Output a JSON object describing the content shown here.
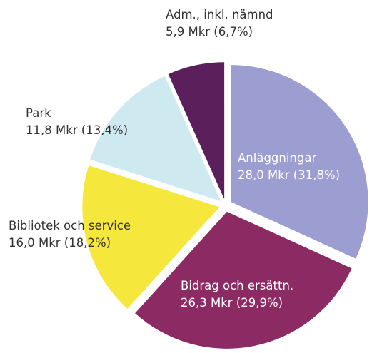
{
  "chart_data": {
    "type": "pie",
    "categories": [
      "Anläggningar",
      "Bidrag och ersättn.",
      "Bibliotek och service",
      "Park",
      "Adm., inkl. nämnd"
    ],
    "values": [
      31.8,
      29.9,
      18.2,
      13.4,
      6.7
    ],
    "value_labels": [
      "28,0 Mkr (31,8%)",
      "26,3 Mkr (29,9%)",
      "16,0 Mkr (18,2%)",
      "11,8 Mkr (13,4%)",
      "5,9 Mkr (6,7%)"
    ],
    "colors": [
      "#9c9dd0",
      "#8c2a63",
      "#f6e73c",
      "#cfe9f1",
      "#5b1f5c"
    ]
  }
}
